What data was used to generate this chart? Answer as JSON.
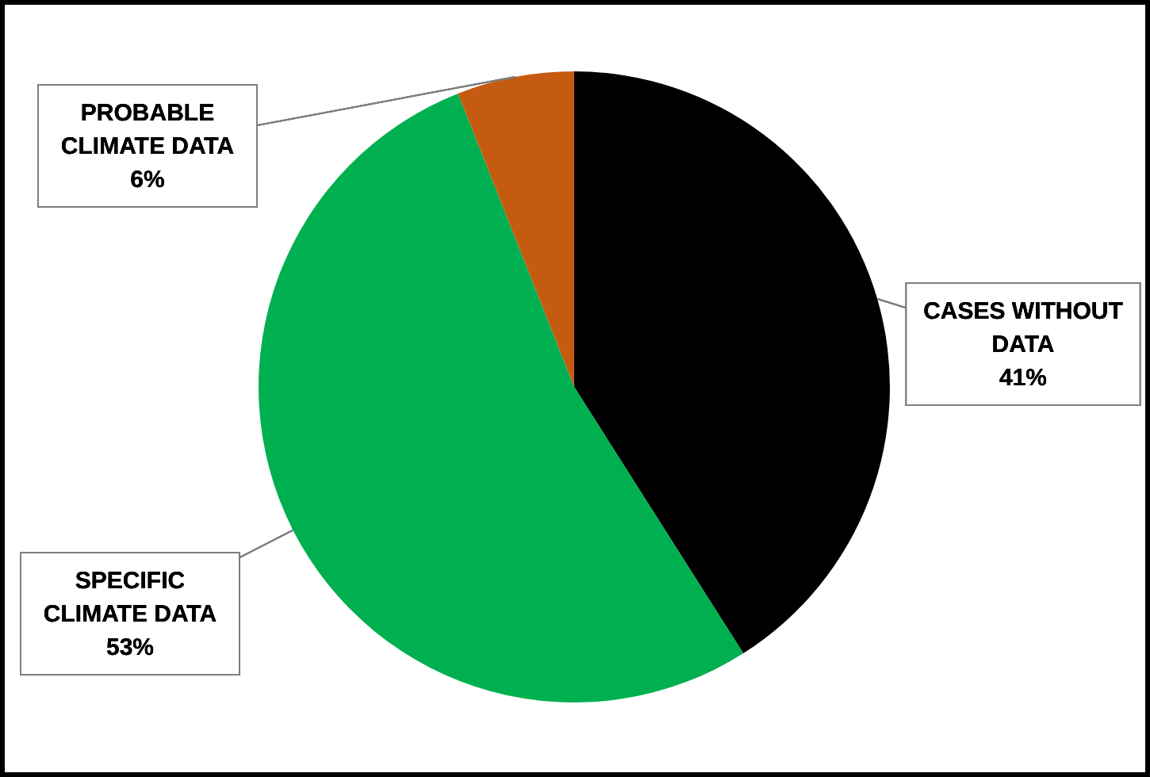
{
  "chart_data": {
    "type": "pie",
    "categories": [
      "CASES WITHOUT DATA",
      "SPECIFIC CLIMATE DATA",
      "PROBABLE CLIMATE DATA"
    ],
    "values": [
      41,
      53,
      6
    ],
    "colors": [
      "#000000",
      "#00b050",
      "#c55a11"
    ],
    "value_labels": [
      "41%",
      "53%",
      "6%"
    ]
  }
}
